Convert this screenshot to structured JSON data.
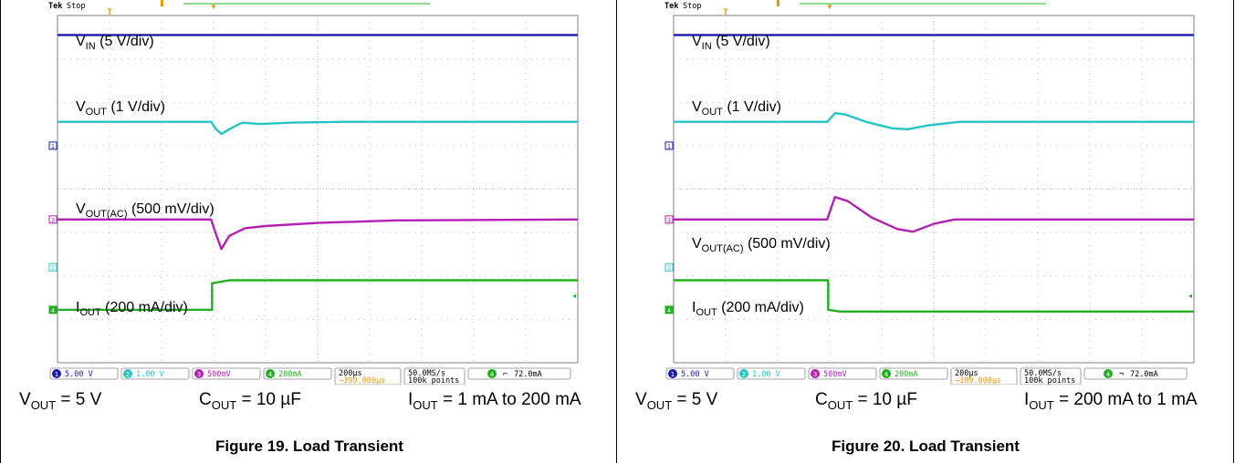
{
  "chart_data": [
    {
      "type": "line",
      "scope_status": "Stop",
      "brand": "Tek",
      "channel_labels": [
        {
          "name": "V",
          "sub": "IN",
          "suffix": " (5 V/div)"
        },
        {
          "name": "V",
          "sub": "OUT",
          "suffix": " (1 V/div)"
        },
        {
          "name": "V",
          "sub": "OUT(AC)",
          "suffix": " (500 mV/div)"
        },
        {
          "name": "I",
          "sub": "OUT",
          "suffix": " (200 mA/div)"
        }
      ],
      "x_div": 10,
      "y_div": 8,
      "trigger_div": 3,
      "series": [
        {
          "color": "#1a1aa8",
          "x": [
            0,
            10
          ],
          "y": [
            7.55,
            7.55
          ]
        },
        {
          "color": "#23c4c4",
          "x": [
            0,
            2.95,
            3.05,
            3.15,
            3.3,
            3.55,
            3.9,
            4.5,
            5.5,
            10
          ],
          "y": [
            5.55,
            5.55,
            5.38,
            5.27,
            5.38,
            5.53,
            5.5,
            5.53,
            5.55,
            5.55
          ]
        },
        {
          "color": "#b21fb2",
          "x": [
            0,
            2.95,
            3.05,
            3.15,
            3.3,
            3.6,
            4.0,
            5.0,
            6.5,
            10
          ],
          "y": [
            3.3,
            3.3,
            2.95,
            2.62,
            2.92,
            3.1,
            3.15,
            3.22,
            3.28,
            3.3
          ]
        },
        {
          "color": "#22b022",
          "x": [
            0,
            2.97,
            2.97,
            3.3,
            10
          ],
          "y": [
            1.22,
            1.22,
            1.83,
            1.9,
            1.9
          ]
        }
      ],
      "status_bar": {
        "ch1": "5.00 V",
        "ch2": "1.00 V",
        "ch3": "500mV",
        "ch4": "200mA",
        "timebase": "200µs",
        "delay": "399.000µs",
        "sample_rate": "50.0MS/s",
        "points": "100k points",
        "trigger_ch": "4",
        "trigger_level": "72.0mA"
      },
      "params": [
        {
          "name": "V",
          "sub": "OUT",
          "value": " = 5 V"
        },
        {
          "name": "C",
          "sub": "OUT",
          "value": " = 10 µF"
        },
        {
          "name": "I",
          "sub": "OUT",
          "value": " = 1 mA to 200 mA"
        }
      ],
      "caption": "Figure 19. Load Transient"
    },
    {
      "type": "line",
      "scope_status": "Stop",
      "brand": "Tek",
      "channel_labels": [
        {
          "name": "V",
          "sub": "IN",
          "suffix": " (5 V/div)"
        },
        {
          "name": "V",
          "sub": "OUT",
          "suffix": " (1 V/div)"
        },
        {
          "name": "V",
          "sub": "OUT(AC)",
          "suffix": " (500 mV/div)"
        },
        {
          "name": "I",
          "sub": "OUT",
          "suffix": " (200 mA/div)"
        }
      ],
      "x_div": 10,
      "y_div": 8,
      "trigger_div": 3,
      "series": [
        {
          "color": "#1a1aa8",
          "x": [
            0,
            10
          ],
          "y": [
            7.55,
            7.55
          ]
        },
        {
          "color": "#23c4c4",
          "x": [
            0,
            2.95,
            3.1,
            3.3,
            3.7,
            4.2,
            4.5,
            4.9,
            5.5,
            10
          ],
          "y": [
            5.55,
            5.55,
            5.75,
            5.72,
            5.55,
            5.4,
            5.38,
            5.47,
            5.55,
            5.55
          ]
        },
        {
          "color": "#b21fb2",
          "x": [
            0,
            2.95,
            3.1,
            3.35,
            3.8,
            4.3,
            4.6,
            5.0,
            5.4,
            10
          ],
          "y": [
            3.3,
            3.3,
            3.82,
            3.72,
            3.35,
            3.08,
            3.02,
            3.2,
            3.3,
            3.3
          ]
        },
        {
          "color": "#22b022",
          "x": [
            0,
            2.97,
            2.97,
            3.2,
            10
          ],
          "y": [
            1.9,
            1.9,
            1.22,
            1.18,
            1.18
          ]
        }
      ],
      "status_bar": {
        "ch1": "5.00 V",
        "ch2": "1.00 V",
        "ch3": "500mV",
        "ch4": "200mA",
        "timebase": "200µs",
        "delay": "399.000µs",
        "sample_rate": "50.0MS/s",
        "points": "100k points",
        "trigger_ch": "4",
        "trigger_level": "72.0mA"
      },
      "params": [
        {
          "name": "V",
          "sub": "OUT",
          "value": " = 5 V"
        },
        {
          "name": "C",
          "sub": "OUT",
          "value": " = 10 µF"
        },
        {
          "name": "I",
          "sub": "OUT",
          "value": " = 200 mA to 1 mA"
        }
      ],
      "caption": "Figure 20. Load Transient"
    }
  ]
}
